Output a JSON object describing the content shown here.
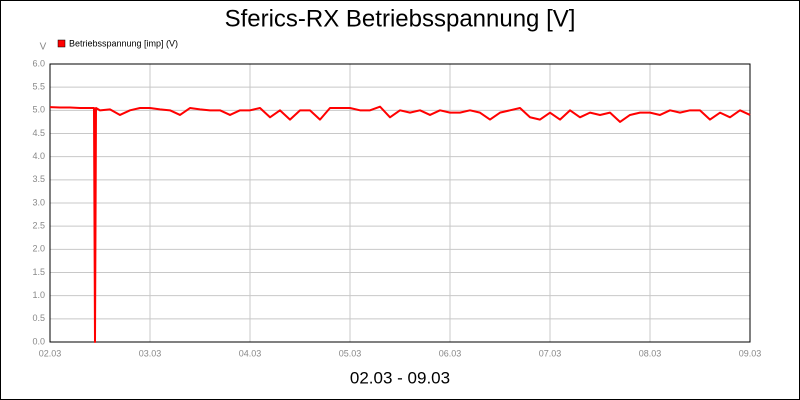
{
  "chart_data": {
    "type": "line",
    "title": "Sferics-RX Betriebsspannung [V]",
    "y_label": "V",
    "x_label": "02.03 - 09.03",
    "x": [
      2.0,
      2.1,
      2.2,
      2.3,
      2.4,
      2.44,
      2.45,
      2.46,
      2.5,
      2.6,
      2.7,
      2.8,
      2.9,
      3.0,
      3.1,
      3.2,
      3.3,
      3.4,
      3.5,
      3.6,
      3.7,
      3.8,
      3.9,
      4.0,
      4.1,
      4.2,
      4.3,
      4.4,
      4.5,
      4.6,
      4.7,
      4.8,
      4.9,
      5.0,
      5.1,
      5.2,
      5.3,
      5.4,
      5.5,
      5.6,
      5.7,
      5.8,
      5.9,
      6.0,
      6.1,
      6.2,
      6.3,
      6.4,
      6.5,
      6.6,
      6.7,
      6.8,
      6.9,
      7.0,
      7.1,
      7.2,
      7.3,
      7.4,
      7.5,
      7.6,
      7.7,
      7.8,
      7.9,
      8.0,
      8.1,
      8.2,
      8.3,
      8.4,
      8.5,
      8.6,
      8.7,
      8.8,
      8.9,
      9.0
    ],
    "series": [
      {
        "name": "Betriebsspannung [imp] (V)",
        "color": "#ff0000",
        "values": [
          5.07,
          5.06,
          5.06,
          5.05,
          5.05,
          5.05,
          0.0,
          5.05,
          5.0,
          5.02,
          4.9,
          5.0,
          5.05,
          5.05,
          5.02,
          5.0,
          4.9,
          5.05,
          5.02,
          5.0,
          5.0,
          4.9,
          5.0,
          5.0,
          5.05,
          4.85,
          5.0,
          4.8,
          5.0,
          5.0,
          4.8,
          5.05,
          5.05,
          5.05,
          5.0,
          5.0,
          5.08,
          4.85,
          5.0,
          4.95,
          5.0,
          4.9,
          5.0,
          4.95,
          4.95,
          5.0,
          4.95,
          4.8,
          4.95,
          5.0,
          5.05,
          4.85,
          4.8,
          4.95,
          4.8,
          5.0,
          4.85,
          4.95,
          4.9,
          4.95,
          4.75,
          4.9,
          4.95,
          4.95,
          4.9,
          5.0,
          4.95,
          5.0,
          5.0,
          4.8,
          4.95,
          4.85,
          5.0,
          4.9
        ]
      }
    ],
    "xlim": [
      2,
      9
    ],
    "xticks": [
      {
        "value": 2,
        "label": "02.03"
      },
      {
        "value": 3,
        "label": "03.03"
      },
      {
        "value": 4,
        "label": "04.03"
      },
      {
        "value": 5,
        "label": "05.03"
      },
      {
        "value": 6,
        "label": "06.03"
      },
      {
        "value": 7,
        "label": "07.03"
      },
      {
        "value": 8,
        "label": "08.03"
      },
      {
        "value": 9,
        "label": "09.03"
      }
    ],
    "ylim": [
      0,
      6
    ],
    "yticks": [
      {
        "value": 0,
        "label": "0.0"
      },
      {
        "value": 0.5,
        "label": "0.5"
      },
      {
        "value": 1,
        "label": "1.0"
      },
      {
        "value": 1.5,
        "label": "1.5"
      },
      {
        "value": 2,
        "label": "2.0"
      },
      {
        "value": 2.5,
        "label": "2.5"
      },
      {
        "value": 3,
        "label": "3.0"
      },
      {
        "value": 3.5,
        "label": "3.5"
      },
      {
        "value": 4,
        "label": "4.0"
      },
      {
        "value": 4.5,
        "label": "4.5"
      },
      {
        "value": 5,
        "label": "5.0"
      },
      {
        "value": 5.5,
        "label": "5.5"
      },
      {
        "value": 6,
        "label": "6.0"
      }
    ],
    "grid": true
  }
}
